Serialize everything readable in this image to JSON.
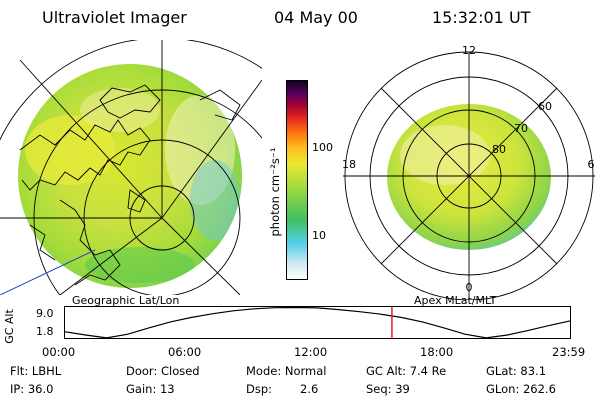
{
  "header": {
    "instrument": "Ultraviolet Imager",
    "date": "04 May 00",
    "time": "15:32:01 UT"
  },
  "left_panel": {
    "label": "Geographic Lat/Lon"
  },
  "right_panel": {
    "label": "Apex MLat/MLT",
    "mlt_labels": {
      "top": "12",
      "bottom": "0",
      "left": "18",
      "right": "6"
    },
    "lat_labels": [
      "60",
      "70",
      "80"
    ]
  },
  "colorbar": {
    "unit_label": "photon cm⁻²s⁻¹",
    "scale": "log",
    "tick_100": "100",
    "tick_10": "10",
    "colors": [
      "#ffffff",
      "#cfe8f0",
      "#50d0e8",
      "#40c060",
      "#9ad840",
      "#e8e830",
      "#ffc020",
      "#ff7010",
      "#e02020",
      "#a00030",
      "#600060",
      "#100020"
    ]
  },
  "altitude_plot": {
    "ylabel": "GC Alt",
    "ymax_label": "9.0",
    "ymin_label": "1.8",
    "ymin": 1.8,
    "ymax": 9.0,
    "hours": [
      0,
      1,
      2,
      3,
      4,
      5,
      6,
      7,
      8,
      9,
      10,
      11,
      12,
      13,
      14,
      15,
      16,
      17,
      18,
      19,
      20,
      21,
      22,
      23,
      24
    ],
    "altitude": [
      3.2,
      2.4,
      1.7,
      2.6,
      4.1,
      5.5,
      6.6,
      7.5,
      8.2,
      8.7,
      8.95,
      9.0,
      8.9,
      8.5,
      8.0,
      7.4,
      6.6,
      5.5,
      4.1,
      2.6,
      1.7,
      2.4,
      3.5,
      4.7,
      5.8
    ],
    "current_time_hour": 15.53,
    "time_ticks": [
      "00:00",
      "06:00",
      "12:00",
      "18:00",
      "23:59"
    ]
  },
  "info": {
    "flt": "Flt: LBHL",
    "door": "Door: Closed",
    "mode": "Mode: Normal",
    "gc_alt": "GC Alt: 7.4 Re",
    "glat": "GLat: 83.1",
    "ip": "IP: 36.0",
    "gain": "Gain: 13",
    "dsp_label": "Dsp:",
    "dsp_value": "2.6",
    "seq": "Seq: 39",
    "glon": "GLon: 262.6"
  }
}
